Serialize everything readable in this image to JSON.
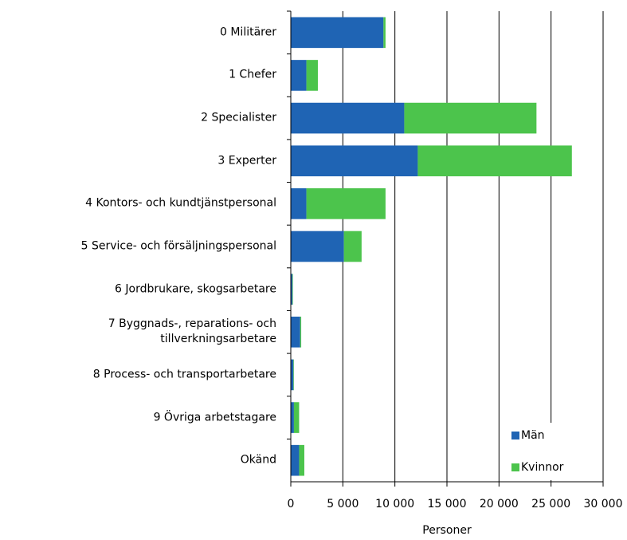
{
  "chart_data": {
    "type": "stacked-barh",
    "categories": [
      "0 Militärer",
      "1 Chefer",
      "2 Specialister",
      "3 Experter",
      "4 Kontors- och kundtjänstpersonal",
      "5 Service- och försäljningspersonal",
      "6 Jordbrukare, skogsarbetare",
      "7 Byggnads-, reparations- och tillverkningsarbetare",
      "8 Process- och transportarbetare",
      "9 Övriga arbetstagare",
      "Okänd"
    ],
    "series": [
      {
        "name": "Män",
        "color": "#1f64b4",
        "values": [
          8900,
          1500,
          10900,
          12200,
          1500,
          5100,
          150,
          900,
          250,
          300,
          800
        ]
      },
      {
        "name": "Kvinnor",
        "color": "#4cc44c",
        "values": [
          200,
          1100,
          12700,
          14800,
          7600,
          1700,
          50,
          100,
          50,
          500,
          500
        ]
      }
    ],
    "xlabel": "Personer",
    "xlim": [
      0,
      30000
    ],
    "xticks": [
      0,
      {
        "value": 5000,
        "label": "5 000"
      },
      {
        "value": 10000,
        "label": "10 000"
      },
      {
        "value": 15000,
        "label": "15 000"
      },
      {
        "value": 20000,
        "label": "20 000"
      },
      {
        "value": 25000,
        "label": "25 000"
      },
      {
        "value": 30000,
        "label": "30 000"
      }
    ],
    "grid": true,
    "legend": "bottom-right"
  }
}
